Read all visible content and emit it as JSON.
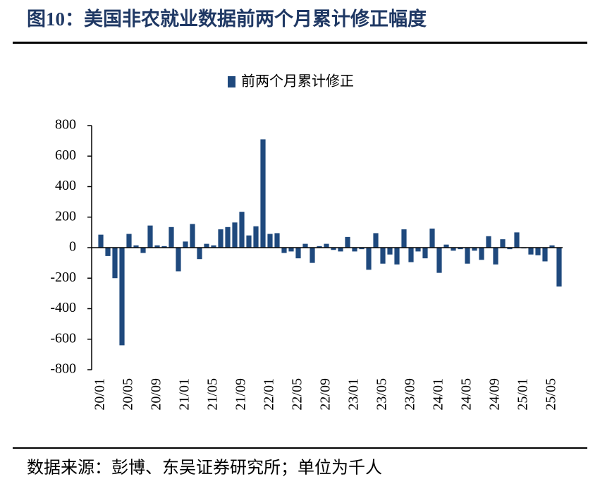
{
  "chart_data": {
    "type": "bar",
    "title": "图10：美国非农就业数据前两个月累计修正幅度",
    "source": "数据来源：彭博、东吴证券研究所；单位为千人",
    "legend": "top",
    "series": [
      {
        "name": "前两个月累计修正",
        "color": "#1f497d",
        "values": [
          85,
          -55,
          -200,
          -640,
          90,
          15,
          -35,
          145,
          15,
          10,
          135,
          -155,
          40,
          155,
          -75,
          25,
          15,
          120,
          135,
          165,
          235,
          80,
          140,
          710,
          90,
          95,
          -35,
          -25,
          -70,
          25,
          -100,
          10,
          25,
          -15,
          -25,
          70,
          -25,
          -10,
          -145,
          95,
          -105,
          -45,
          -110,
          120,
          -95,
          -25,
          -70,
          125,
          -165,
          20,
          -20,
          -10,
          -105,
          -20,
          -80,
          75,
          -110,
          55,
          -10,
          100,
          -5,
          -45,
          -50,
          -90,
          15,
          -255
        ]
      }
    ],
    "categories": [
      "20/01",
      null,
      null,
      null,
      "20/05",
      null,
      null,
      null,
      "20/09",
      null,
      null,
      null,
      "21/01",
      null,
      null,
      null,
      "21/05",
      null,
      null,
      null,
      "21/09",
      null,
      null,
      null,
      "22/01",
      null,
      null,
      null,
      "22/05",
      null,
      null,
      null,
      "22/09",
      null,
      null,
      null,
      "23/01",
      null,
      null,
      null,
      "23/05",
      null,
      null,
      null,
      "23/09",
      null,
      null,
      null,
      "24/01",
      null,
      null,
      null,
      "24/05",
      null,
      null,
      null,
      "24/09",
      null,
      null,
      null,
      "25/01",
      null,
      null,
      null,
      "25/05",
      null
    ],
    "ylim": [
      -800,
      800
    ],
    "yticks": [
      -800,
      -600,
      -400,
      -200,
      0,
      200,
      400,
      600,
      800
    ]
  }
}
